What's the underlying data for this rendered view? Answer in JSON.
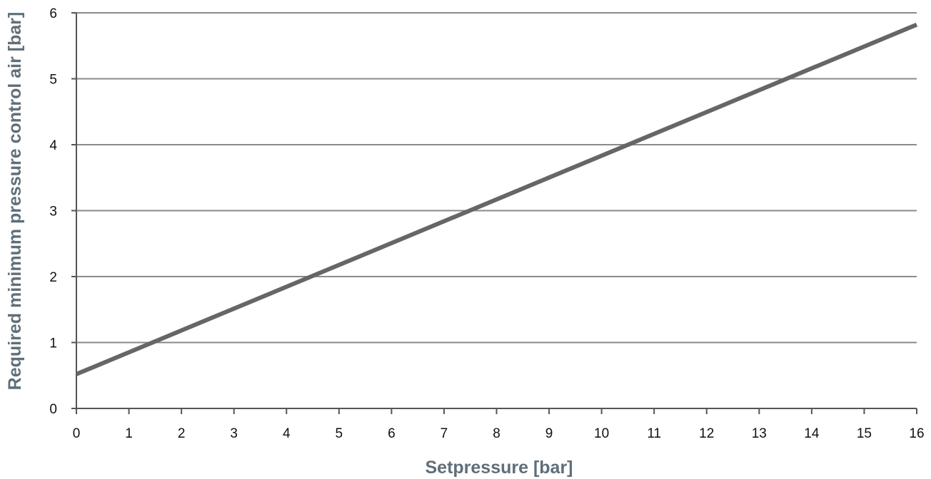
{
  "chart_data": {
    "type": "line",
    "title": "",
    "xlabel": "Setpressure [bar]",
    "ylabel": "Required minimum pressure control air  [bar]",
    "xlim": [
      0,
      16
    ],
    "ylim": [
      0,
      6
    ],
    "x_ticks": [
      "0",
      "1",
      "2",
      "3",
      "4",
      "5",
      "6",
      "7",
      "8",
      "9",
      "10",
      "11",
      "12",
      "13",
      "14",
      "15",
      "16"
    ],
    "y_ticks": [
      "0",
      "1",
      "2",
      "3",
      "4",
      "5",
      "6"
    ],
    "grid": "horizontal",
    "legend": "none",
    "series": [
      {
        "x": [
          0,
          16
        ],
        "y": [
          0.52,
          5.82
        ]
      }
    ],
    "colors": {
      "line": "#666666",
      "grid": "#8a8a8a",
      "axis": "#555555",
      "axis_title": "#5f6f7a"
    }
  }
}
